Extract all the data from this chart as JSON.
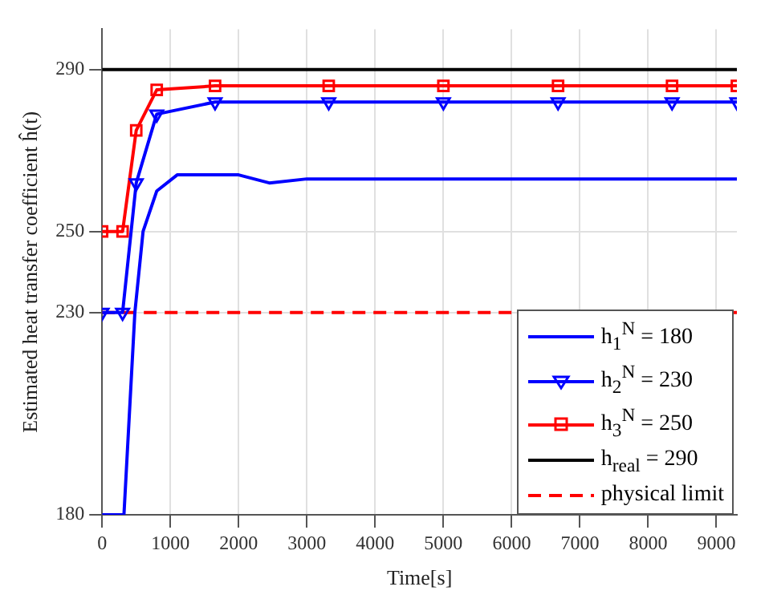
{
  "chart_data": {
    "type": "line",
    "xlabel": "Time[s]",
    "ylabel": "Estimated heat transfer coefficient ĥ(t)",
    "xlim": [
      0,
      9300
    ],
    "xticks": [
      0,
      1000,
      2000,
      3000,
      4000,
      5000,
      6000,
      7000,
      8000,
      9000
    ],
    "ylim": [
      180,
      300
    ],
    "yticks": [
      180,
      230,
      250,
      290
    ],
    "grid": true,
    "legend": "bottom right",
    "series": [
      {
        "name": "h$_{1}$$^{N}$ = 180",
        "color": "#0000ff",
        "marker": "none",
        "line_style": "solid",
        "x": [
          0,
          320,
          480,
          600,
          800,
          1100,
          2000,
          2450,
          3000,
          9300
        ],
        "values": [
          180,
          180,
          230,
          250,
          260,
          264,
          264,
          262,
          263,
          263
        ]
      },
      {
        "name": "h$_{2}$$^{N}$ = 230",
        "color": "#0000ff",
        "marker": "triangle",
        "line_style": "solid",
        "x": [
          0,
          300,
          500,
          800,
          1655,
          3320,
          5000,
          6680,
          8350,
          9300
        ],
        "values": [
          230,
          230,
          262,
          279,
          282,
          282,
          282,
          282,
          282,
          282
        ]
      },
      {
        "name": "h$_{3}$$^{N}$ = 250",
        "color": "#ff0000",
        "marker": "square",
        "line_style": "solid",
        "x": [
          0,
          300,
          500,
          800,
          1655,
          3320,
          5000,
          6680,
          8350,
          9300
        ],
        "values": [
          250,
          250,
          275,
          285,
          286,
          286,
          286,
          286,
          286,
          286
        ]
      },
      {
        "name": "h$_{real}$ = 290",
        "color": "#000000",
        "marker": "none",
        "line_style": "solid",
        "x": [
          0,
          9300
        ],
        "values": [
          290,
          290
        ]
      },
      {
        "name": "physical limit",
        "color": "#ff0000",
        "marker": "none",
        "line_style": "dashed",
        "x": [
          0,
          9300
        ],
        "values": [
          230,
          230
        ]
      }
    ]
  }
}
